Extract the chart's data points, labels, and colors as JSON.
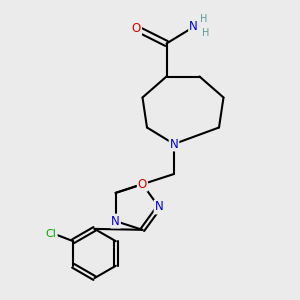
{
  "bg_color": "#ebebeb",
  "bond_color": "#000000",
  "bond_width": 1.5,
  "atom_colors": {
    "C": "#000000",
    "N": "#0000cc",
    "O": "#dd0000",
    "Cl": "#00aa00",
    "H": "#5a9a9a"
  },
  "font_size_atom": 8.5,
  "font_size_h": 7.0
}
